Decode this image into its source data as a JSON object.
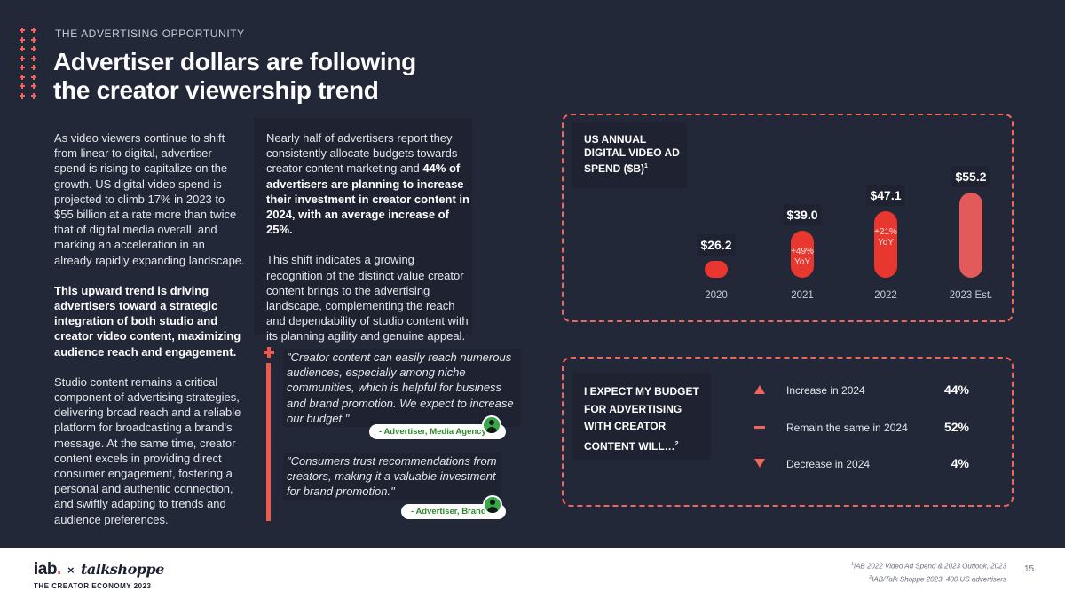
{
  "header": {
    "eyebrow": "THE ADVERTISING OPPORTUNITY",
    "title_line1": "Advertiser dollars are following",
    "title_line2": "the creator viewership trend"
  },
  "col1": {
    "p1": "As video viewers continue to shift from linear to digital, advertiser spend is rising to capitalize on the growth. US digital video spend is projected to climb 17% in 2023 to $55 billion at a rate more than twice that of digital media overall, and marking an acceleration in an already rapidly expanding landscape.",
    "p2": "This upward trend is driving advertisers toward a strategic integration of both studio and creator video content, maximizing audience reach and engagement.",
    "p3": "Studio content remains a critical component of advertising strategies, delivering broad reach and a reliable platform for broadcasting a brand's message. At the same time, creator content excels in providing direct consumer engagement, fostering a personal and authentic connection, and swiftly adapting to trends and audience preferences."
  },
  "col2": {
    "p1_a": "Nearly half of advertisers report they consistently allocate budgets towards creator content marketing and ",
    "p1_b": "44% of advertisers are planning to increase their investment in creator content in 2024, with an average increase of 25%.",
    "p2": "This shift indicates a growing recognition of the distinct value creator content brings to the advertising landscape, complementing the reach and dependability of studio content with its planning agility and genuine appeal."
  },
  "quotes": [
    {
      "text": "\"Creator content can easily reach numerous audiences, especially among niche communities, which is helpful for business and brand promotion. We expect to increase our budget.\"",
      "attribution": "- Advertiser, Media Agency"
    },
    {
      "text": "\"Consumers trust recommendations from creators, making it a valuable investment for brand promotion.\"",
      "attribution": "- Advertiser, Brand"
    }
  ],
  "chart_data": {
    "type": "bar",
    "title": "US ANNUAL DIGITAL VIDEO AD SPEND ($B)",
    "title_footnote": "1",
    "categories": [
      "2020",
      "2021",
      "2022",
      "2023 Est."
    ],
    "values": [
      26.2,
      39.0,
      47.1,
      55.2
    ],
    "value_labels": [
      "$26.2",
      "$39.0",
      "$47.1",
      "$55.2"
    ],
    "annotations": [
      "",
      "+49% YoY",
      "+21% YoY",
      ""
    ],
    "colors": [
      "#e8372e",
      "#e8372e",
      "#e8372e",
      "#e25a59"
    ],
    "ylim": [
      0,
      60
    ]
  },
  "survey": {
    "title": "I EXPECT MY BUDGET FOR ADVERTISING WITH CREATOR CONTENT WILL…",
    "title_footnote": "2",
    "options": [
      {
        "icon": "triangle-up-icon",
        "label": "Increase in 2024",
        "pct": "44%"
      },
      {
        "icon": "dash-icon",
        "label": "Remain the same in 2024",
        "pct": "52%"
      },
      {
        "icon": "triangle-down-icon",
        "label": "Decrease in 2024",
        "pct": "4%"
      }
    ]
  },
  "footer": {
    "logo_iab": "iab",
    "logo_x": "×",
    "logo_ts": "talkshoppe",
    "eco": "THE CREATOR ECONOMY 2023",
    "source1_num": "1",
    "source1": "IAB 2022 Video Ad Spend & 2023 Outlook, 2023",
    "source2_num": "2",
    "source2": "IAB/Talk Shoppe 2023, 400 US advertisers",
    "page": "15"
  },
  "colors": {
    "background": "#232838",
    "accent": "#f2655a",
    "bar": "#e8372e",
    "bar_est": "#e25a59",
    "green": "#3aa64a"
  }
}
